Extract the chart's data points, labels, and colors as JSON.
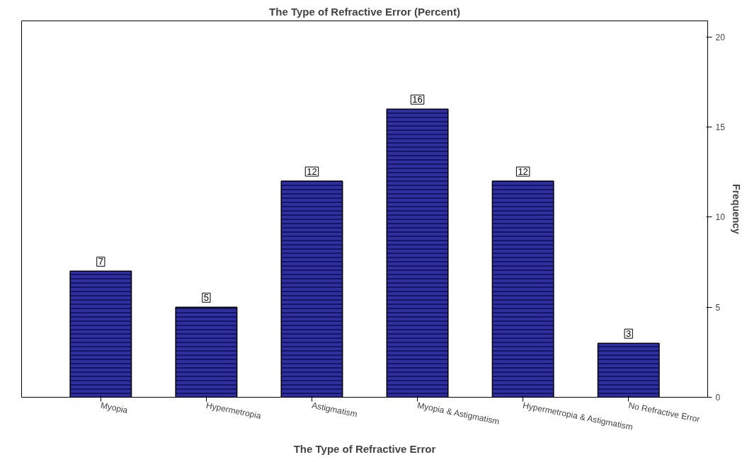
{
  "chart_data": {
    "type": "bar",
    "title": "The Type of Refractive Error (Percent)",
    "xlabel": "The Type of Refractive Error",
    "ylabel": "Frequency",
    "categories": [
      "Myopia",
      "Hypermetropia",
      "Astigmatism",
      "Myopia & Astigmatism",
      "Hypermetropia & Astigmatism",
      "No Refractive Error"
    ],
    "values": [
      7,
      5,
      12,
      16,
      12,
      3
    ],
    "color": "#2e2ea8",
    "ylim": [
      0,
      20.9
    ],
    "yticks": [
      0,
      5,
      10,
      15,
      20
    ],
    "grid": false,
    "data_labels": true
  }
}
